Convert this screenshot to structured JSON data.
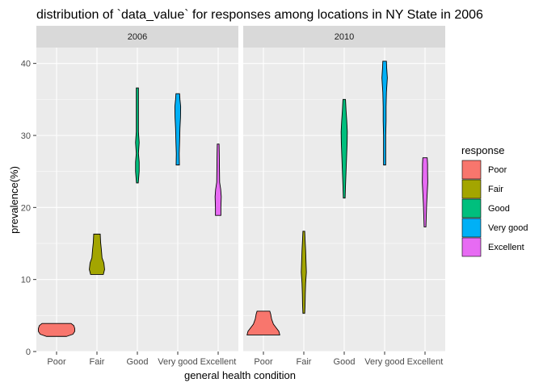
{
  "chart_data": {
    "type": "violin",
    "title": "distribution of `data_value` for responses among locations in NY State in 2006",
    "xlabel": "general health condition",
    "ylabel": "prevalence(%)",
    "categories": [
      "Poor",
      "Fair",
      "Good",
      "Very good",
      "Excellent"
    ],
    "ylim": [
      0,
      42.2
    ],
    "yticks": [
      0,
      10,
      20,
      30,
      40
    ],
    "grid": true,
    "legend": {
      "title": "response",
      "position": "right",
      "entries": [
        "Poor",
        "Fair",
        "Good",
        "Very good",
        "Excellent"
      ]
    },
    "colors": {
      "Poor": "#f8766d",
      "Fair": "#a3a500",
      "Good": "#00bf7d",
      "Very good": "#00b0f6",
      "Excellent": "#e76bf3"
    },
    "facets": [
      {
        "label": "2006",
        "series": [
          {
            "category": "Poor",
            "range": [
              2.1,
              3.9
            ],
            "profile": [
              [
                2.1,
                0.55
              ],
              [
                2.4,
                0.9
              ],
              [
                2.8,
                1.0
              ],
              [
                3.2,
                1.0
              ],
              [
                3.6,
                0.95
              ],
              [
                3.9,
                0.8
              ]
            ]
          },
          {
            "category": "Fair",
            "range": [
              10.7,
              16.3
            ],
            "profile": [
              [
                10.7,
                0.35
              ],
              [
                11.4,
                0.42
              ],
              [
                12.3,
                0.38
              ],
              [
                13.0,
                0.28
              ],
              [
                14.2,
                0.24
              ],
              [
                15.2,
                0.2
              ],
              [
                16.3,
                0.18
              ]
            ]
          },
          {
            "category": "Good",
            "range": [
              23.4,
              36.6
            ],
            "profile": [
              [
                23.4,
                0.05
              ],
              [
                25.0,
                0.1
              ],
              [
                26.3,
                0.1
              ],
              [
                27.5,
                0.06
              ],
              [
                29.0,
                0.1
              ],
              [
                30.5,
                0.06
              ],
              [
                33.0,
                0.06
              ],
              [
                35.0,
                0.06
              ],
              [
                36.6,
                0.06
              ]
            ]
          },
          {
            "category": "Very good",
            "range": [
              25.9,
              35.8
            ],
            "profile": [
              [
                25.9,
                0.09
              ],
              [
                27.5,
                0.08
              ],
              [
                29.0,
                0.1
              ],
              [
                31.0,
                0.12
              ],
              [
                32.5,
                0.15
              ],
              [
                34.0,
                0.16
              ],
              [
                35.0,
                0.12
              ],
              [
                35.8,
                0.1
              ]
            ]
          },
          {
            "category": "Excellent",
            "range": [
              18.9,
              28.8
            ],
            "profile": [
              [
                18.9,
                0.15
              ],
              [
                20.0,
                0.15
              ],
              [
                21.5,
                0.17
              ],
              [
                22.5,
                0.14
              ],
              [
                23.5,
                0.08
              ],
              [
                25.5,
                0.07
              ],
              [
                27.5,
                0.06
              ],
              [
                28.8,
                0.05
              ]
            ]
          }
        ]
      },
      {
        "label": "2010",
        "series": [
          {
            "category": "Poor",
            "range": [
              2.3,
              5.6
            ],
            "profile": [
              [
                2.3,
                0.9
              ],
              [
                2.8,
                0.85
              ],
              [
                3.3,
                0.7
              ],
              [
                3.8,
                0.55
              ],
              [
                4.5,
                0.45
              ],
              [
                5.2,
                0.4
              ],
              [
                5.6,
                0.35
              ]
            ]
          },
          {
            "category": "Fair",
            "range": [
              5.3,
              16.7
            ],
            "profile": [
              [
                5.3,
                0.05
              ],
              [
                6.5,
                0.07
              ],
              [
                8.0,
                0.08
              ],
              [
                9.5,
                0.1
              ],
              [
                11.0,
                0.14
              ],
              [
                12.5,
                0.12
              ],
              [
                14.0,
                0.1
              ],
              [
                15.5,
                0.07
              ],
              [
                16.7,
                0.05
              ]
            ]
          },
          {
            "category": "Good",
            "range": [
              21.3,
              35.0
            ],
            "profile": [
              [
                21.3,
                0.05
              ],
              [
                23.0,
                0.07
              ],
              [
                25.0,
                0.1
              ],
              [
                27.0,
                0.13
              ],
              [
                29.0,
                0.16
              ],
              [
                30.5,
                0.17
              ],
              [
                32.0,
                0.14
              ],
              [
                33.5,
                0.1
              ],
              [
                35.0,
                0.07
              ]
            ]
          },
          {
            "category": "Very good",
            "range": [
              25.9,
              40.3
            ],
            "profile": [
              [
                25.9,
                0.06
              ],
              [
                28.0,
                0.06
              ],
              [
                30.0,
                0.06
              ],
              [
                32.0,
                0.08
              ],
              [
                34.0,
                0.08
              ],
              [
                36.0,
                0.1
              ],
              [
                38.0,
                0.15
              ],
              [
                39.5,
                0.11
              ],
              [
                40.3,
                0.1
              ]
            ]
          },
          {
            "category": "Excellent",
            "range": [
              17.3,
              26.9
            ],
            "profile": [
              [
                17.3,
                0.05
              ],
              [
                19.0,
                0.07
              ],
              [
                20.5,
                0.09
              ],
              [
                22.0,
                0.12
              ],
              [
                23.5,
                0.15
              ],
              [
                25.0,
                0.14
              ],
              [
                26.0,
                0.14
              ],
              [
                26.9,
                0.12
              ]
            ]
          }
        ]
      }
    ]
  }
}
